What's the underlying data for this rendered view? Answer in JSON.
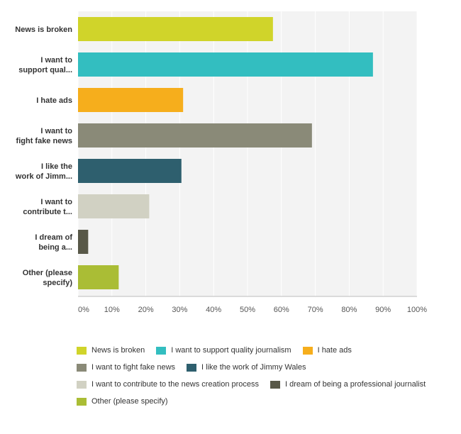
{
  "chart_data": {
    "type": "bar",
    "orientation": "horizontal",
    "categories": [
      "News is broken",
      "I want to support qual...",
      "I hate ads",
      "I want to fight fake news",
      "I like the work of Jimm...",
      "I want to contribute t...",
      "I dream of being a...",
      "Other (please specify)"
    ],
    "category_lines": [
      [
        "News is broken"
      ],
      [
        "I want to",
        "support qual..."
      ],
      [
        "I hate ads"
      ],
      [
        "I want to",
        "fight fake news"
      ],
      [
        "I like the",
        "work of Jimm..."
      ],
      [
        "I want to",
        "contribute t..."
      ],
      [
        "I dream of",
        "being a..."
      ],
      [
        "Other (please",
        "specify)"
      ]
    ],
    "values": [
      57.5,
      87,
      31,
      69,
      30.5,
      21,
      3,
      12
    ],
    "colors": [
      "#d0d42a",
      "#33bec0",
      "#f6ae1c",
      "#8a8a78",
      "#2e5f6e",
      "#d1d1c3",
      "#585848",
      "#aabd35"
    ],
    "xlim": [
      0,
      100
    ],
    "ticks": [
      0,
      10,
      20,
      30,
      40,
      50,
      60,
      70,
      80,
      90,
      100
    ],
    "tick_labels": [
      "0%",
      "10%",
      "20%",
      "30%",
      "40%",
      "50%",
      "60%",
      "70%",
      "80%",
      "90%",
      "100%"
    ],
    "grid": true,
    "title": "",
    "xlabel": "",
    "ylabel": "",
    "legend": {
      "placement": "bottom",
      "entries": [
        "News is broken",
        "I want to support quality journalism",
        "I hate ads",
        "I want to fight fake news",
        "I like the work of Jimmy Wales",
        "I want to contribute to the news creation process",
        "I dream of being a professional journalist",
        "Other (please specify)"
      ],
      "rows": [
        [
          0,
          1,
          2
        ],
        [
          3,
          4
        ],
        [
          5,
          6
        ],
        [
          7
        ]
      ]
    }
  }
}
